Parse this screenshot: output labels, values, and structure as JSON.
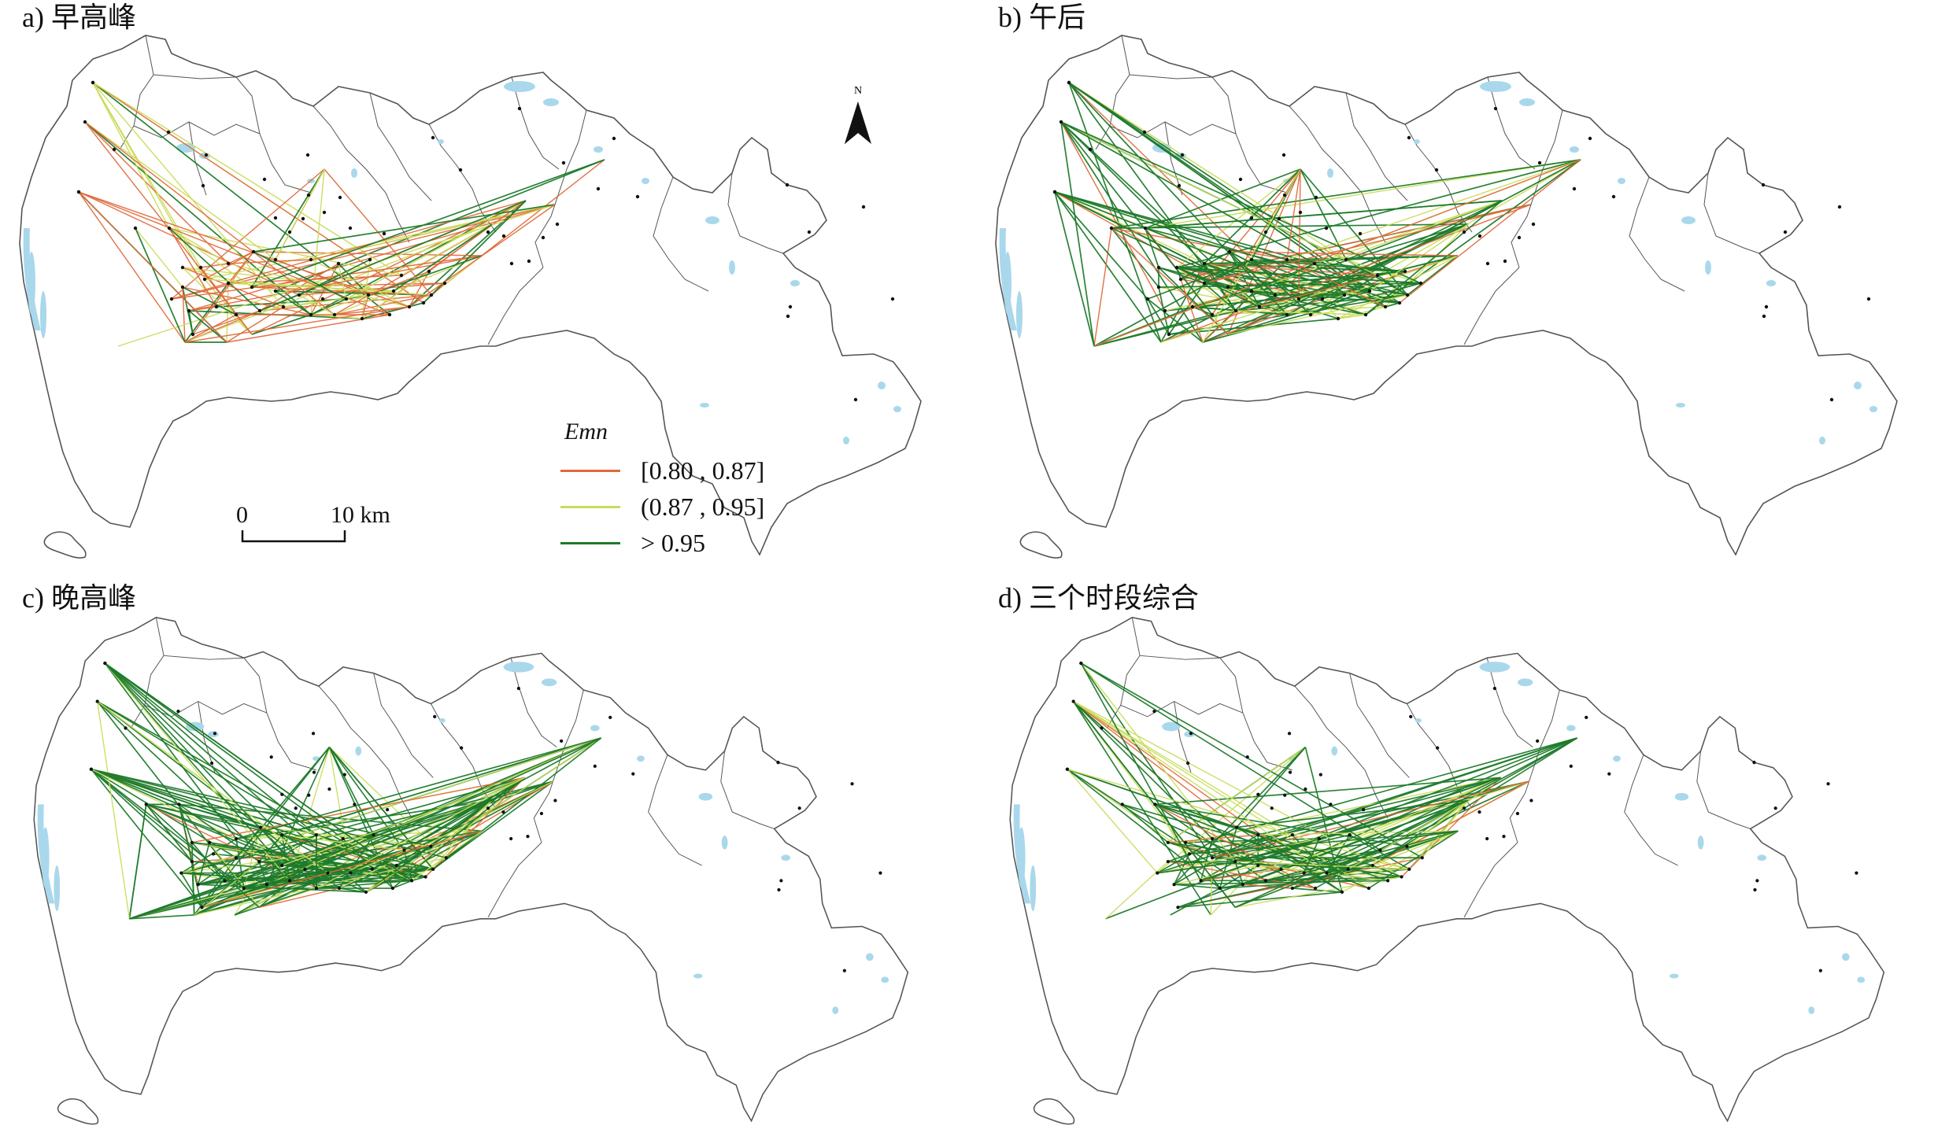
{
  "panels": [
    {
      "id": "a",
      "title": "a) 早高峰",
      "mix": [
        0.4,
        0.32,
        0.28
      ],
      "density": 130
    },
    {
      "id": "b",
      "title": "b) 午后",
      "mix": [
        0.16,
        0.2,
        0.64
      ],
      "density": 210
    },
    {
      "id": "c",
      "title": "c) 晚高峰",
      "mix": [
        0.04,
        0.2,
        0.76
      ],
      "density": 250
    },
    {
      "id": "d",
      "title": "d) 三个时段综合",
      "mix": [
        0.08,
        0.3,
        0.62
      ],
      "density": 180
    }
  ],
  "legend": {
    "title": "Emn",
    "items": [
      {
        "label": "[0.80 , 0.87]",
        "color": "#e0693a"
      },
      {
        "label": "(0.87 , 0.95]",
        "color": "#c9dc5a"
      },
      {
        "label": ">  0.95",
        "color": "#1e7a2a"
      }
    ]
  },
  "scalebar": {
    "start": "0",
    "end": "10 km"
  },
  "north": {
    "label": "N"
  },
  "colors": {
    "land": "#ffffff",
    "boundary": "#555555",
    "water": "#a9d8ec",
    "node": "#111111"
  }
}
